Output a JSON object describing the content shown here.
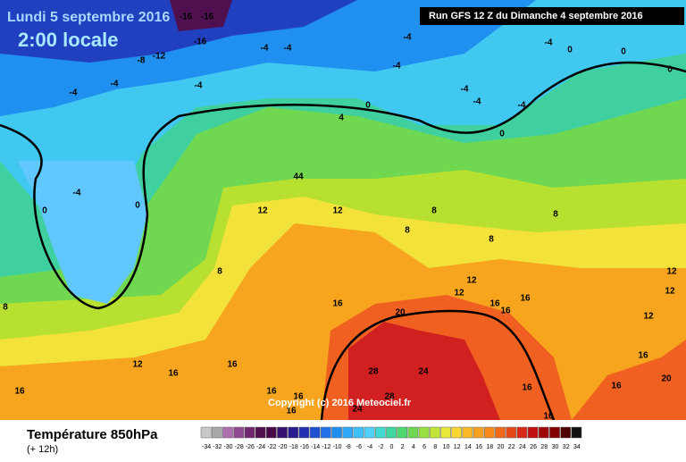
{
  "header": {
    "date": "Lundi 5 septembre 2016",
    "time": "2:00 locale",
    "run": "Run GFS 12 Z du Dimanche 4 septembre 2016"
  },
  "copyright": "Copyright (c) 2016 Meteociel.fr",
  "footer": {
    "title": "Température 850hPa",
    "lead": "(+ 12h)"
  },
  "legend": {
    "ticks": [
      -34,
      -32,
      -30,
      -28,
      -26,
      -24,
      -22,
      -20,
      -18,
      -16,
      -14,
      -12,
      -10,
      -8,
      -6,
      -4,
      -2,
      0,
      2,
      4,
      6,
      8,
      10,
      12,
      14,
      16,
      18,
      20,
      22,
      24,
      26,
      28,
      30,
      32,
      34
    ],
    "colors": [
      "#c8c8c8",
      "#a8a8a8",
      "#b070b0",
      "#904890",
      "#702870",
      "#501050",
      "#480848",
      "#381070",
      "#2a1a90",
      "#2030b0",
      "#2050d0",
      "#2070e8",
      "#2090f0",
      "#30a8f8",
      "#40c0f8",
      "#50d0f8",
      "#40d8d0",
      "#40d8a0",
      "#50d870",
      "#70d850",
      "#98e040",
      "#c0e438",
      "#e8e838",
      "#f8d830",
      "#f8b828",
      "#f8a020",
      "#f88818",
      "#f06818",
      "#e84818",
      "#d82818",
      "#c01010",
      "#a00808",
      "#800000",
      "#500000",
      "#101010"
    ]
  },
  "contour_labels": [
    "-16",
    "-16",
    "-16",
    "-8",
    "-12",
    "-4",
    "-4",
    "-4",
    "-4",
    "-4",
    "-4",
    "-4",
    "-4",
    "-4",
    "-4",
    "-4",
    "0",
    "0",
    "0",
    "0",
    "0",
    "0",
    "0",
    "-4",
    "4",
    "44",
    "12",
    "12",
    "8",
    "8",
    "8",
    "8",
    "8",
    "8",
    "12",
    "12",
    "12",
    "12",
    "12",
    "16",
    "16",
    "16",
    "16",
    "12",
    "16",
    "16",
    "16",
    "20",
    "16",
    "20",
    "28",
    "24",
    "28",
    "24",
    "16",
    "16",
    "16",
    "16",
    "16",
    "16"
  ]
}
